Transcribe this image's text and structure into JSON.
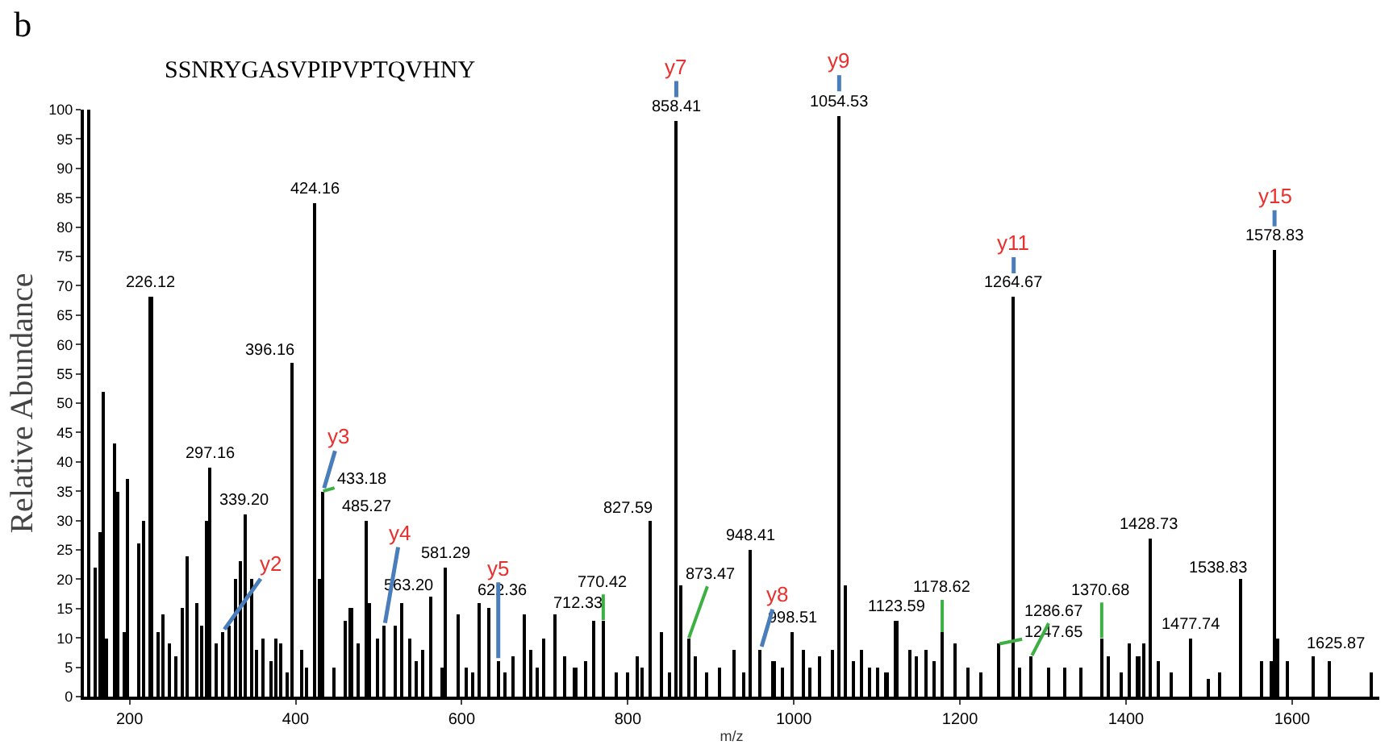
{
  "chart_data": {
    "type": "bar",
    "title": "b",
    "xlabel": "m/z",
    "ylabel": "Relative Abundance",
    "x": [
      151,
      159,
      164,
      169,
      173,
      183,
      187,
      194,
      198,
      211,
      218,
      226.12,
      235,
      240,
      249,
      256,
      264,
      270,
      282,
      288,
      294,
      297.16,
      305,
      312,
      320,
      328,
      334,
      339.2,
      347,
      354,
      361,
      370,
      376,
      383,
      390,
      396.16,
      407,
      414,
      424.16,
      430,
      433.18,
      447,
      460,
      467,
      475,
      485.27,
      490,
      499,
      507,
      520,
      529,
      537,
      546,
      554,
      563.2,
      576,
      581.29,
      596,
      605,
      613,
      622.36,
      634,
      644,
      653,
      663,
      676,
      683,
      692,
      699,
      712.33,
      725,
      737,
      750,
      759,
      770.42,
      786,
      800,
      812,
      818,
      827.59,
      841,
      850,
      858.41,
      864,
      873.47,
      882,
      895,
      910,
      928,
      940,
      948.41,
      960,
      976,
      987,
      998.51,
      1011,
      1020,
      1031,
      1047,
      1054.53,
      1063,
      1072,
      1082,
      1092,
      1102,
      1112,
      1123.59,
      1140,
      1147,
      1160,
      1170,
      1178.62,
      1195,
      1210,
      1225,
      1247.65,
      1264.67,
      1272,
      1286.67,
      1308,
      1327,
      1347,
      1370.68,
      1380,
      1395,
      1405,
      1415,
      1421,
      1428.73,
      1440,
      1455,
      1477.74,
      1500,
      1514,
      1538.83,
      1563,
      1575,
      1578.83,
      1584,
      1595,
      1625.87,
      1646,
      1695
    ],
    "values": [
      100,
      22,
      28,
      52,
      10,
      43,
      35,
      11,
      37,
      26,
      30,
      68,
      11,
      14,
      9,
      7,
      15,
      24,
      16,
      12,
      30,
      39,
      9,
      11,
      12,
      20,
      23,
      31,
      20,
      8,
      10,
      6,
      10,
      9,
      4,
      57,
      8,
      5,
      84,
      20,
      35,
      5,
      13,
      15,
      9,
      30,
      16,
      10,
      12,
      12,
      16,
      10,
      6,
      8,
      17,
      5,
      22,
      14,
      5,
      4,
      16,
      15,
      6,
      4,
      7,
      14,
      8,
      5,
      10,
      14,
      7,
      5,
      6,
      13,
      13,
      4,
      4,
      7,
      5,
      30,
      11,
      4,
      98,
      19,
      10,
      7,
      4,
      5,
      8,
      4,
      25,
      8,
      6,
      5,
      11,
      8,
      5,
      7,
      8,
      99,
      19,
      6,
      8,
      5,
      5,
      4,
      13,
      8,
      7,
      8,
      6,
      11,
      9,
      5,
      4,
      9,
      68,
      5,
      7,
      5,
      5,
      5,
      10,
      7,
      4,
      9,
      7,
      9,
      27,
      6,
      4,
      10,
      3,
      4,
      20,
      6,
      6,
      76,
      10,
      6,
      7,
      6,
      4
    ],
    "color": "#000000",
    "xlim": [
      145,
      1705
    ],
    "xticks": [
      200,
      400,
      600,
      800,
      1000,
      1200,
      1400,
      1600
    ],
    "ylim": [
      0,
      100
    ],
    "yticks": [
      0,
      5,
      10,
      15,
      20,
      25,
      30,
      35,
      40,
      45,
      50,
      55,
      60,
      65,
      70,
      75,
      80,
      85,
      90,
      95,
      100
    ],
    "grid": false,
    "legend": false,
    "annotations": [
      "SSNRYGASVPIPVPTQVHNY",
      {
        "text": "226.12",
        "x": 226.12,
        "y": 68
      },
      {
        "text": "297.16",
        "x": 297.16,
        "y": 39
      },
      {
        "text": "339.20",
        "x": 339.2,
        "y": 31
      },
      {
        "text": "396.16",
        "x": 396.16,
        "y": 57
      },
      {
        "text": "424.16",
        "x": 424.16,
        "y": 84
      },
      {
        "text": "433.18",
        "x": 433.18,
        "y": 35
      },
      {
        "text": "485.27",
        "x": 485.27,
        "y": 30
      },
      {
        "text": "563.20",
        "x": 563.2,
        "y": 17
      },
      {
        "text": "581.29",
        "x": 581.29,
        "y": 22
      },
      {
        "text": "622.36",
        "x": 622.36,
        "y": 16
      },
      {
        "text": "712.33",
        "x": 712.33,
        "y": 14
      },
      {
        "text": "770.42",
        "x": 770.42,
        "y": 13
      },
      {
        "text": "827.59",
        "x": 827.59,
        "y": 30
      },
      {
        "text": "858.41",
        "x": 858.41,
        "y": 98
      },
      {
        "text": "873.47",
        "x": 873.47,
        "y": 10
      },
      {
        "text": "948.41",
        "x": 948.41,
        "y": 25
      },
      {
        "text": "998.51",
        "x": 998.51,
        "y": 11
      },
      {
        "text": "1054.53",
        "x": 1054.53,
        "y": 99
      },
      {
        "text": "1123.59",
        "x": 1123.59,
        "y": 13
      },
      {
        "text": "1178.62",
        "x": 1178.62,
        "y": 11
      },
      {
        "text": "1247.65",
        "x": 1247.65,
        "y": 9
      },
      {
        "text": "1264.67",
        "x": 1264.67,
        "y": 68
      },
      {
        "text": "1286.67",
        "x": 1286.67,
        "y": 7
      },
      {
        "text": "1370.68",
        "x": 1370.68,
        "y": 10
      },
      {
        "text": "1428.73",
        "x": 1428.73,
        "y": 27
      },
      {
        "text": "1477.74",
        "x": 1477.74,
        "y": 10
      },
      {
        "text": "1538.83",
        "x": 1538.83,
        "y": 20
      },
      {
        "text": "1578.83",
        "x": 1578.83,
        "y": 76
      },
      {
        "text": "1625.87",
        "x": 1625.87,
        "y": 7
      },
      {
        "text": "y2",
        "x": 312,
        "y": 11
      },
      {
        "text": "y3",
        "x": 433.18,
        "y": 35
      },
      {
        "text": "y4",
        "x": 507,
        "y": 12
      },
      {
        "text": "y5",
        "x": 644,
        "y": 6
      },
      {
        "text": "y7",
        "x": 858.41,
        "y": 98
      },
      {
        "text": "y8",
        "x": 960,
        "y": 8
      },
      {
        "text": "y9",
        "x": 1054.53,
        "y": 99
      },
      {
        "text": "y11",
        "x": 1264.67,
        "y": 68
      },
      {
        "text": "y15",
        "x": 1578.83,
        "y": 76
      }
    ]
  }
}
